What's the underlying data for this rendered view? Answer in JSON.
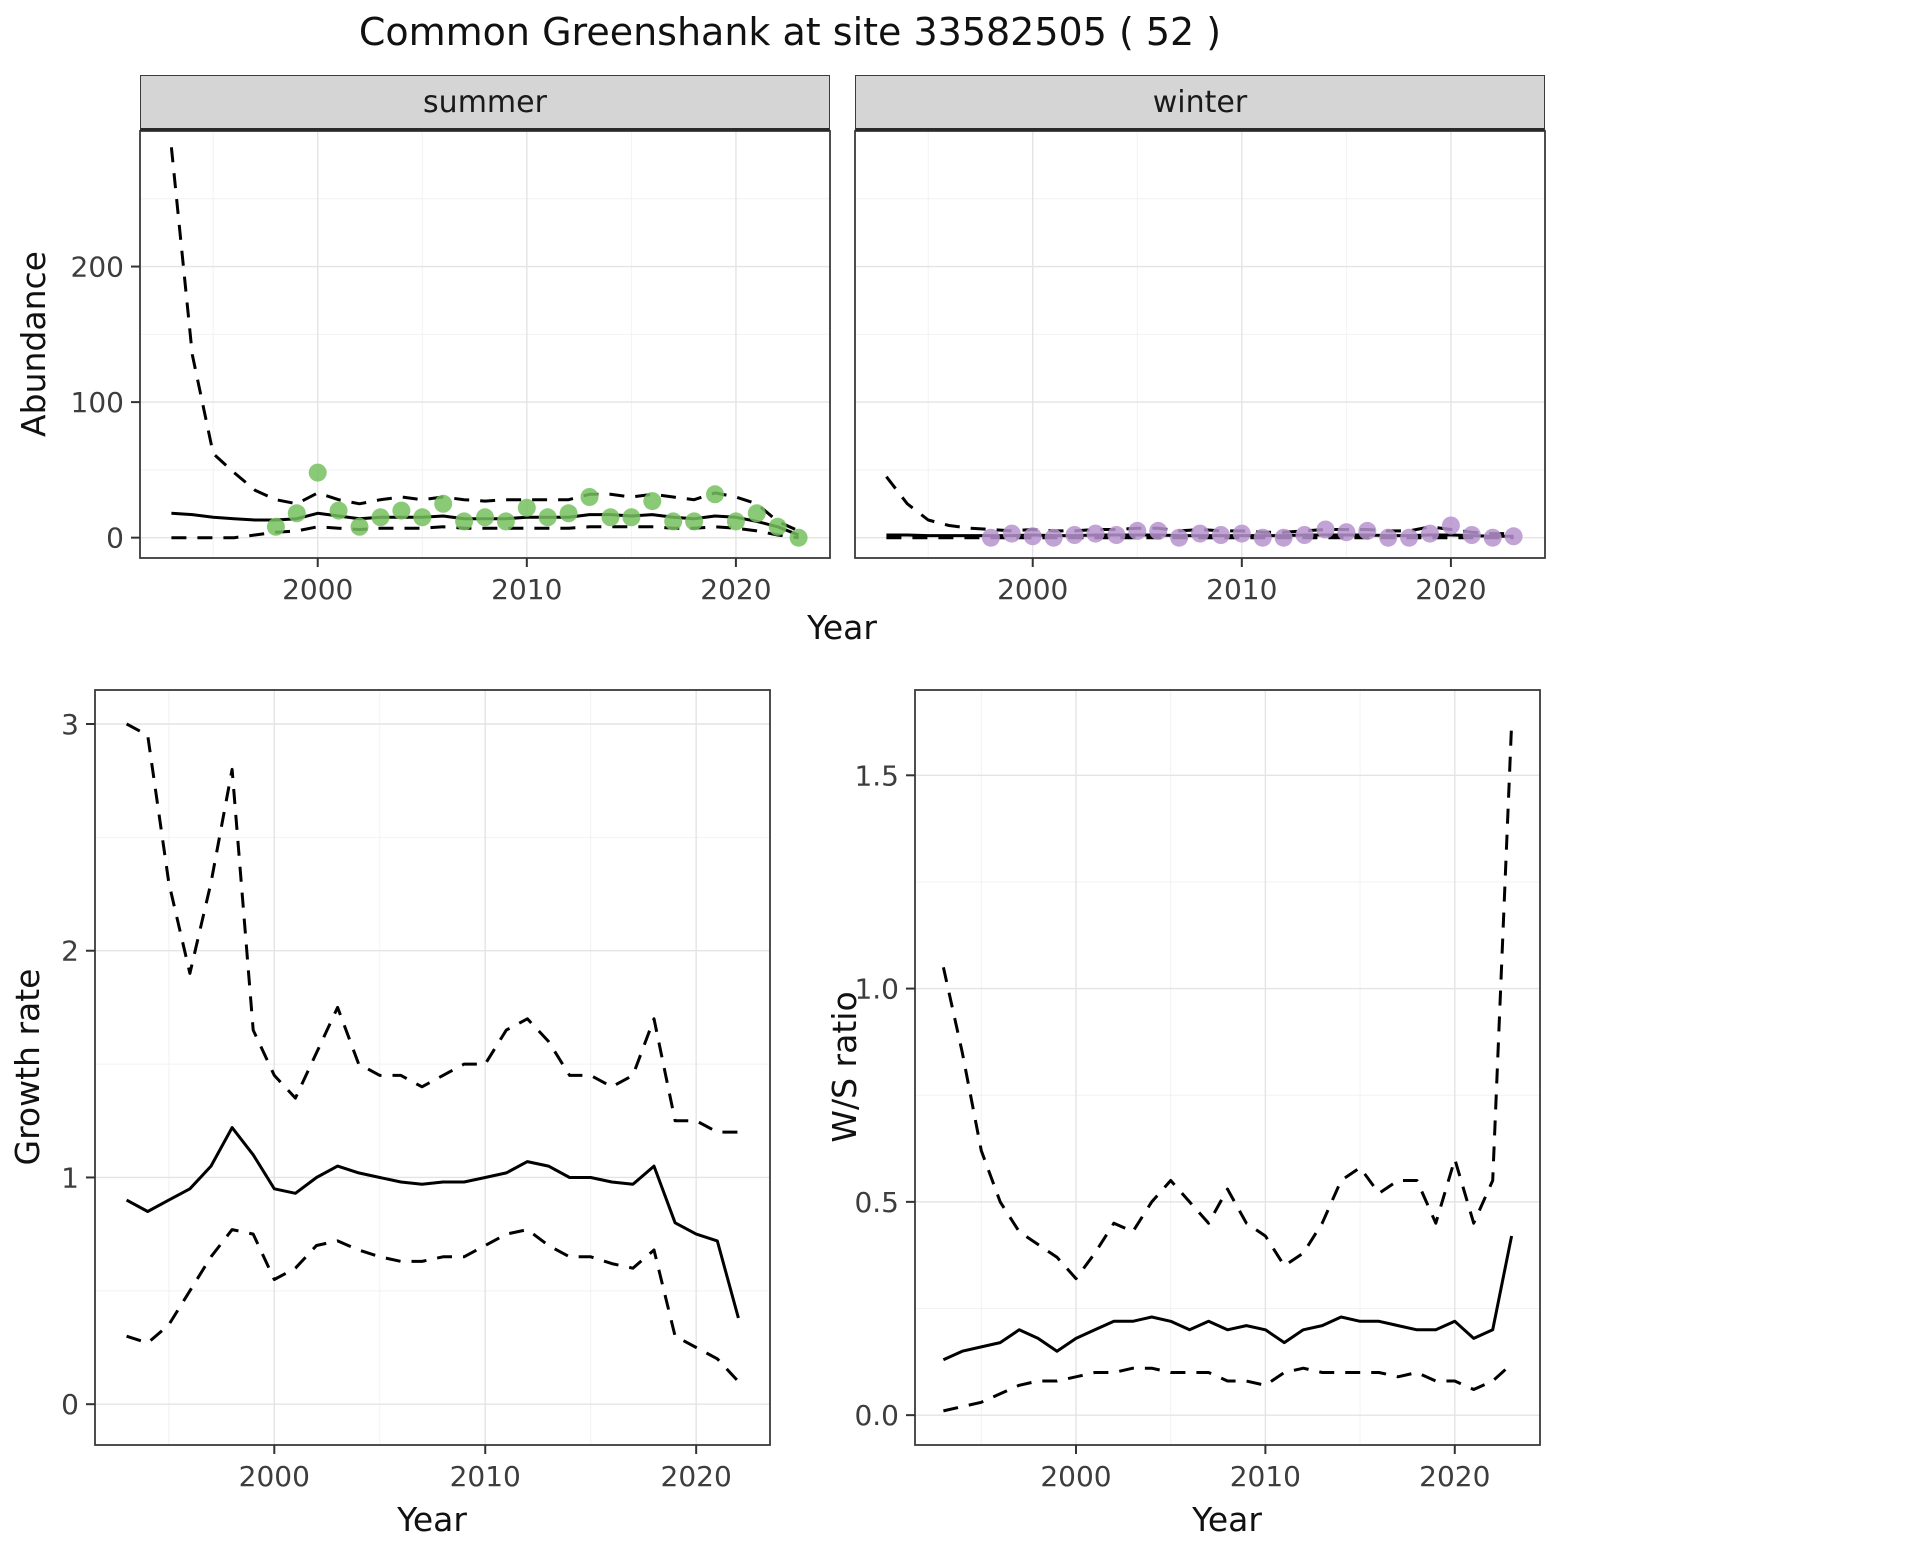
{
  "title": "Common Greenshank at site 33582505 ( 52 )",
  "facets": [
    {
      "label": "summer"
    },
    {
      "label": "winter"
    }
  ],
  "theme": {
    "strip_fill": "#d5d5d5",
    "grid_major": "#e4e4e4",
    "grid_minor": "#f2f2f2",
    "panel_border": "#3a3a3a",
    "line_color": "#000000",
    "tick_text_color": "#3d3d3d",
    "summer_point_color": "#76c15f",
    "winter_point_color": "#b793ce"
  },
  "chart_data": [
    {
      "id": "abundance_summer",
      "type": "line",
      "facet": "summer",
      "xlabel": "Year",
      "ylabel": "Abundance",
      "xlim": [
        1991.5,
        2024.5
      ],
      "ylim": [
        -15,
        300
      ],
      "xticks": {
        "values": [
          2000,
          2010,
          2020
        ],
        "labels": [
          "2000",
          "2010",
          "2020"
        ]
      },
      "yticks": {
        "values": [
          0,
          100,
          200
        ],
        "labels": [
          "0",
          "100",
          "200"
        ]
      },
      "x": [
        1993,
        1994,
        1995,
        1996,
        1997,
        1998,
        1999,
        2000,
        2001,
        2002,
        2003,
        2004,
        2005,
        2006,
        2007,
        2008,
        2009,
        2010,
        2011,
        2012,
        2013,
        2014,
        2015,
        2016,
        2017,
        2018,
        2019,
        2020,
        2021,
        2022,
        2023
      ],
      "series": [
        {
          "name": "upper-ci",
          "style": "dashed",
          "values": [
            288,
            135,
            62,
            48,
            35,
            28,
            25,
            33,
            28,
            25,
            28,
            30,
            28,
            30,
            28,
            27,
            28,
            28,
            28,
            28,
            32,
            32,
            30,
            32,
            30,
            28,
            33,
            30,
            25,
            12,
            5
          ]
        },
        {
          "name": "estimate",
          "style": "solid",
          "values": [
            18,
            17,
            15,
            14,
            13,
            13,
            14,
            18,
            16,
            14,
            15,
            15,
            15,
            16,
            14,
            14,
            14,
            15,
            15,
            15,
            17,
            17,
            16,
            17,
            15,
            14,
            16,
            15,
            12,
            8,
            2
          ]
        },
        {
          "name": "lower-ci",
          "style": "dashed",
          "values": [
            0,
            0,
            0,
            0,
            2,
            4,
            5,
            8,
            7,
            6,
            7,
            7,
            7,
            8,
            7,
            7,
            7,
            7,
            7,
            7,
            8,
            8,
            8,
            8,
            7,
            7,
            8,
            7,
            5,
            2,
            0
          ]
        }
      ],
      "points": {
        "name": "observed-counts-summer",
        "color": "#76c15f",
        "x": [
          1998,
          1999,
          2000,
          2001,
          2002,
          2003,
          2004,
          2005,
          2006,
          2007,
          2008,
          2009,
          2010,
          2011,
          2012,
          2013,
          2014,
          2015,
          2016,
          2017,
          2018,
          2019,
          2020,
          2021,
          2022,
          2023
        ],
        "y": [
          8,
          18,
          48,
          20,
          8,
          15,
          20,
          15,
          25,
          12,
          15,
          12,
          22,
          15,
          18,
          30,
          15,
          15,
          27,
          12,
          12,
          32,
          12,
          18,
          8,
          0
        ]
      }
    },
    {
      "id": "abundance_winter",
      "type": "line",
      "facet": "winter",
      "xlabel": "",
      "ylabel": "",
      "xlim": [
        1991.5,
        2024.5
      ],
      "ylim": [
        -15,
        300
      ],
      "xticks": {
        "values": [
          2000,
          2010,
          2020
        ],
        "labels": [
          "2000",
          "2010",
          "2020"
        ]
      },
      "yticks": {
        "values": [
          0,
          100,
          200
        ],
        "labels": [
          "0",
          "100",
          "200"
        ]
      },
      "x": [
        1993,
        1994,
        1995,
        1996,
        1997,
        1998,
        1999,
        2000,
        2001,
        2002,
        2003,
        2004,
        2005,
        2006,
        2007,
        2008,
        2009,
        2010,
        2011,
        2012,
        2013,
        2014,
        2015,
        2016,
        2017,
        2018,
        2019,
        2020,
        2021,
        2022,
        2023
      ],
      "series": [
        {
          "name": "upper-ci",
          "style": "dashed",
          "values": [
            45,
            25,
            13,
            9,
            7,
            6,
            5,
            6,
            5,
            5,
            6,
            6,
            7,
            7,
            5,
            6,
            5,
            5,
            4,
            4,
            5,
            6,
            6,
            6,
            5,
            5,
            8,
            6,
            4,
            3,
            3
          ]
        },
        {
          "name": "estimate",
          "style": "solid",
          "values": [
            2,
            2,
            1.5,
            1.5,
            1.5,
            1.5,
            1.5,
            2,
            1.5,
            1.5,
            2,
            2,
            2,
            2,
            1.5,
            1.5,
            1.5,
            1.5,
            1.5,
            1.5,
            2,
            2,
            2,
            2,
            1.5,
            1.5,
            2,
            2,
            1.5,
            1,
            1
          ]
        },
        {
          "name": "lower-ci",
          "style": "dashed",
          "values": [
            0,
            0,
            0,
            0,
            0,
            0,
            0,
            0,
            0,
            0,
            0,
            0,
            0,
            0,
            0,
            0,
            0,
            0,
            0,
            0,
            0,
            0,
            0,
            0,
            0,
            0,
            0,
            0,
            0,
            0,
            0
          ]
        }
      ],
      "points": {
        "name": "observed-counts-winter",
        "color": "#b793ce",
        "x": [
          1998,
          1999,
          2000,
          2001,
          2002,
          2003,
          2004,
          2005,
          2006,
          2007,
          2008,
          2009,
          2010,
          2011,
          2012,
          2013,
          2014,
          2015,
          2016,
          2017,
          2018,
          2019,
          2020,
          2021,
          2022,
          2023
        ],
        "y": [
          0,
          3,
          1,
          0,
          2,
          3,
          2,
          5,
          5,
          0,
          3,
          2,
          3,
          0,
          0,
          2,
          6,
          4,
          5,
          0,
          0,
          3,
          9,
          2,
          0,
          1
        ]
      }
    },
    {
      "id": "growth_rate",
      "type": "line",
      "facet": "",
      "xlabel": "Year",
      "ylabel": "Growth rate",
      "xlim": [
        1991.5,
        2023.5
      ],
      "ylim": [
        -0.18,
        3.15
      ],
      "xticks": {
        "values": [
          2000,
          2010,
          2020
        ],
        "labels": [
          "2000",
          "2010",
          "2020"
        ]
      },
      "yticks": {
        "values": [
          0,
          1,
          2,
          3
        ],
        "labels": [
          "0",
          "1",
          "2",
          "3"
        ]
      },
      "x": [
        1993,
        1994,
        1995,
        1996,
        1997,
        1998,
        1999,
        2000,
        2001,
        2002,
        2003,
        2004,
        2005,
        2006,
        2007,
        2008,
        2009,
        2010,
        2011,
        2012,
        2013,
        2014,
        2015,
        2016,
        2017,
        2018,
        2019,
        2020,
        2021,
        2022
      ],
      "series": [
        {
          "name": "upper-ci",
          "style": "dashed",
          "values": [
            3.0,
            2.95,
            2.3,
            1.9,
            2.3,
            2.8,
            1.65,
            1.45,
            1.35,
            1.55,
            1.75,
            1.5,
            1.45,
            1.45,
            1.4,
            1.45,
            1.5,
            1.5,
            1.65,
            1.7,
            1.6,
            1.45,
            1.45,
            1.4,
            1.45,
            1.7,
            1.25,
            1.25,
            1.2,
            1.2
          ]
        },
        {
          "name": "estimate",
          "style": "solid",
          "values": [
            0.9,
            0.85,
            0.9,
            0.95,
            1.05,
            1.22,
            1.1,
            0.95,
            0.93,
            1.0,
            1.05,
            1.02,
            1.0,
            0.98,
            0.97,
            0.98,
            0.98,
            1.0,
            1.02,
            1.07,
            1.05,
            1.0,
            1.0,
            0.98,
            0.97,
            1.05,
            0.8,
            0.75,
            0.72,
            0.38
          ]
        },
        {
          "name": "lower-ci",
          "style": "dashed",
          "values": [
            0.3,
            0.27,
            0.35,
            0.5,
            0.65,
            0.77,
            0.75,
            0.55,
            0.6,
            0.7,
            0.72,
            0.68,
            0.65,
            0.63,
            0.63,
            0.65,
            0.65,
            0.7,
            0.75,
            0.77,
            0.7,
            0.65,
            0.65,
            0.62,
            0.6,
            0.68,
            0.3,
            0.25,
            0.2,
            0.1
          ]
        }
      ]
    },
    {
      "id": "ws_ratio",
      "type": "line",
      "facet": "",
      "xlabel": "Year",
      "ylabel": "W/S ratio",
      "xlim": [
        1991.5,
        2024.5
      ],
      "ylim": [
        -0.07,
        1.7
      ],
      "xticks": {
        "values": [
          2000,
          2010,
          2020
        ],
        "labels": [
          "2000",
          "2010",
          "2020"
        ]
      },
      "yticks": {
        "values": [
          0,
          0.5,
          1,
          1.5
        ],
        "labels": [
          "0.0",
          "0.5",
          "1.0",
          "1.5"
        ]
      },
      "x": [
        1993,
        1994,
        1995,
        1996,
        1997,
        1998,
        1999,
        2000,
        2001,
        2002,
        2003,
        2004,
        2005,
        2006,
        2007,
        2008,
        2009,
        2010,
        2011,
        2012,
        2013,
        2014,
        2015,
        2016,
        2017,
        2018,
        2019,
        2020,
        2021,
        2022,
        2023
      ],
      "series": [
        {
          "name": "upper-ci",
          "style": "dashed",
          "values": [
            1.05,
            0.85,
            0.62,
            0.5,
            0.43,
            0.4,
            0.37,
            0.32,
            0.38,
            0.45,
            0.43,
            0.5,
            0.55,
            0.5,
            0.45,
            0.53,
            0.45,
            0.42,
            0.35,
            0.38,
            0.45,
            0.55,
            0.58,
            0.52,
            0.55,
            0.55,
            0.45,
            0.6,
            0.45,
            0.55,
            1.62
          ]
        },
        {
          "name": "estimate",
          "style": "solid",
          "values": [
            0.13,
            0.15,
            0.16,
            0.17,
            0.2,
            0.18,
            0.15,
            0.18,
            0.2,
            0.22,
            0.22,
            0.23,
            0.22,
            0.2,
            0.22,
            0.2,
            0.21,
            0.2,
            0.17,
            0.2,
            0.21,
            0.23,
            0.22,
            0.22,
            0.21,
            0.2,
            0.2,
            0.22,
            0.18,
            0.2,
            0.42
          ]
        },
        {
          "name": "lower-ci",
          "style": "dashed",
          "values": [
            0.01,
            0.02,
            0.03,
            0.05,
            0.07,
            0.08,
            0.08,
            0.09,
            0.1,
            0.1,
            0.11,
            0.11,
            0.1,
            0.1,
            0.1,
            0.08,
            0.08,
            0.07,
            0.1,
            0.11,
            0.1,
            0.1,
            0.1,
            0.1,
            0.09,
            0.1,
            0.08,
            0.08,
            0.06,
            0.08,
            0.12
          ]
        }
      ]
    }
  ]
}
